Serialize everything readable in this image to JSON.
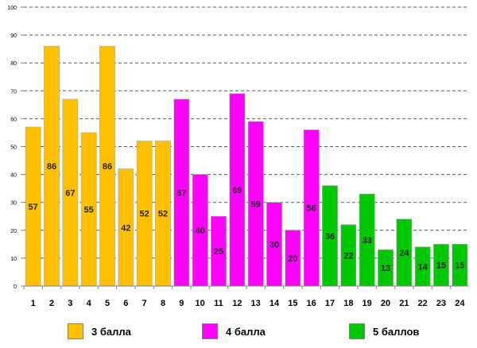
{
  "chart_data": {
    "type": "bar",
    "title": "",
    "xlabel": "",
    "ylabel": "",
    "ylim": [
      0,
      100
    ],
    "yticks": [
      0,
      10,
      20,
      30,
      40,
      50,
      60,
      70,
      80,
      90,
      100
    ],
    "grid": true,
    "categories": [
      "1",
      "2",
      "3",
      "4",
      "5",
      "6",
      "7",
      "8",
      "9",
      "10",
      "11",
      "12",
      "13",
      "14",
      "15",
      "16",
      "17",
      "18",
      "19",
      "20",
      "21",
      "22",
      "23",
      "24"
    ],
    "values": [
      57,
      86,
      67,
      55,
      86,
      42,
      52,
      52,
      67,
      40,
      25,
      69,
      59,
      30,
      20,
      56,
      36,
      22,
      33,
      13,
      24,
      14,
      15,
      15
    ],
    "groups": [
      0,
      0,
      0,
      0,
      0,
      0,
      0,
      0,
      1,
      1,
      1,
      1,
      1,
      1,
      1,
      1,
      2,
      2,
      2,
      2,
      2,
      2,
      2,
      2
    ],
    "series": [
      {
        "name": "3 балла",
        "color": "#FFC000"
      },
      {
        "name": "4 балла",
        "color": "#FF00FF"
      },
      {
        "name": "5 баллов",
        "color": "#00C800"
      }
    ],
    "legend": "bottom"
  }
}
